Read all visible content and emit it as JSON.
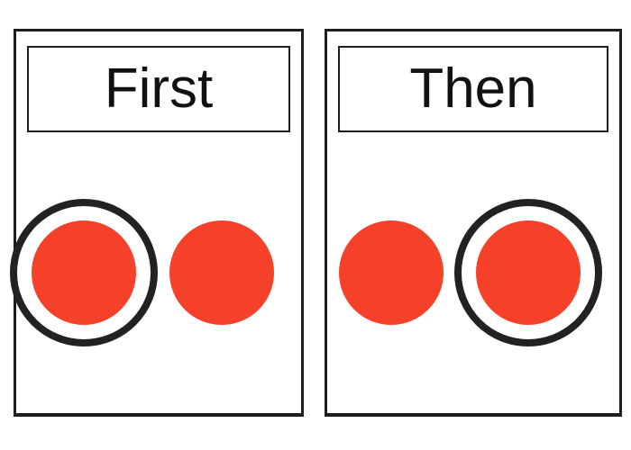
{
  "cards": [
    {
      "title": "First",
      "circles": [
        {
          "color": "#f5402a",
          "ringed": true
        },
        {
          "color": "#f5402a",
          "ringed": false
        }
      ]
    },
    {
      "title": "Then",
      "circles": [
        {
          "color": "#f5402a",
          "ringed": false
        },
        {
          "color": "#f5402a",
          "ringed": true
        }
      ]
    }
  ],
  "colors": {
    "dot": "#f5402a",
    "ring": "#222222",
    "border": "#1e1e1e"
  }
}
